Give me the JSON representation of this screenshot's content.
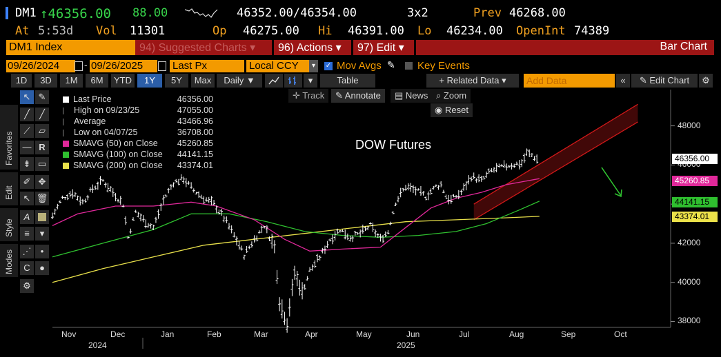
{
  "header": {
    "ticker": "DM1",
    "last": "↑46356.00",
    "change": "88.00",
    "bid_ask": "46352.00/46354.00",
    "size": "3x2",
    "prev_label": "Prev",
    "prev": "46268.00",
    "at_label": "At",
    "at": "5:53d",
    "vol_label": "Vol",
    "vol": "11301",
    "op_label": "Op",
    "op": "46275.00",
    "hi_label": "Hi",
    "hi": "46391.00",
    "lo_label": "Lo",
    "lo": "46234.00",
    "oi_label": "OpenInt",
    "oi": "74389"
  },
  "command_bar": {
    "security": "DM1 Index",
    "suggested": "94) Suggested Charts ▾",
    "actions": "96) Actions ▾",
    "edit": "97) Edit ▾",
    "chart_type": "Bar Chart"
  },
  "settings_bar": {
    "start_date": "09/26/2024",
    "end_date": "09/26/2025",
    "field": "Last Px",
    "currency": "Local CCY",
    "mov_avgs": "Mov Avgs",
    "key_events": "Key Events"
  },
  "toolbar": {
    "periods": [
      "1D",
      "3D",
      "1M",
      "6M",
      "YTD",
      "1Y",
      "5Y",
      "Max"
    ],
    "selected_period": "1Y",
    "frequency": "Daily ▼",
    "table": "Table",
    "related": "+ Related Data ▾",
    "add_data_placeholder": "Add Data",
    "edit_chart": "Edit Chart"
  },
  "chart_tools": {
    "track": "Track",
    "annotate": "Annotate",
    "news": "News",
    "zoom": "Zoom",
    "reset": "Reset"
  },
  "side_tabs": [
    "Favorites",
    "Edit",
    "Style",
    "Modes"
  ],
  "legend": [
    {
      "label": "Last Price",
      "value": "46356.00",
      "color": "#ffffff"
    },
    {
      "label": "High on 09/23/25",
      "value": "47055.00",
      "color": "#aaaaaa"
    },
    {
      "label": "Average",
      "value": "43466.96",
      "color": "#aaaaaa"
    },
    {
      "label": "Low on 04/07/25",
      "value": "36708.00",
      "color": "#aaaaaa"
    },
    {
      "label": "SMAVG (50)  on Close",
      "value": "45260.85",
      "color": "#e0289a"
    },
    {
      "label": "SMAVG (100)  on Close",
      "value": "44141.15",
      "color": "#2fbf2f"
    },
    {
      "label": "SMAVG (200)  on Close",
      "value": "43374.01",
      "color": "#e8e04a"
    }
  ],
  "annotation": "DOW Futures",
  "colors": {
    "sma50": "#e0289a",
    "sma100": "#2fbf2f",
    "sma200": "#e8e04a",
    "channel": "#d01818",
    "arrow": "#2fbf2f",
    "accent_orange": "#f39a00",
    "bar_red": "#9c1515"
  },
  "chart_data": {
    "type": "bar",
    "ylim": [
      37700,
      49500
    ],
    "yticks": [
      "48000",
      "46000",
      "44000",
      "42000",
      "40000",
      "38000"
    ],
    "xticks": [
      "Nov",
      "Dec",
      "Jan",
      "Feb",
      "Mar",
      "Apr",
      "May",
      "Jun",
      "Jul",
      "Aug",
      "Sep",
      "Oct"
    ],
    "years": [
      "2024",
      "2025"
    ],
    "last_badge": "46356.00",
    "sma_badges": [
      "45260.85",
      "44141.15",
      "43374.01"
    ],
    "price_path": [
      [
        0,
        43400
      ],
      [
        4,
        44300
      ],
      [
        8,
        44600
      ],
      [
        12,
        44100
      ],
      [
        16,
        44800
      ],
      [
        20,
        45200
      ],
      [
        24,
        44600
      ],
      [
        28,
        44000
      ],
      [
        30,
        42300
      ],
      [
        33,
        43600
      ],
      [
        36,
        43200
      ],
      [
        40,
        42800
      ],
      [
        44,
        44200
      ],
      [
        48,
        45100
      ],
      [
        52,
        45300
      ],
      [
        56,
        44700
      ],
      [
        60,
        44300
      ],
      [
        64,
        44000
      ],
      [
        68,
        43300
      ],
      [
        72,
        42400
      ],
      [
        76,
        41400
      ],
      [
        80,
        42200
      ],
      [
        84,
        42900
      ],
      [
        88,
        41800
      ],
      [
        90,
        39000
      ],
      [
        93,
        37900
      ],
      [
        96,
        40500
      ],
      [
        99,
        39500
      ],
      [
        102,
        40600
      ],
      [
        106,
        41300
      ],
      [
        110,
        42200
      ],
      [
        114,
        42700
      ],
      [
        118,
        42300
      ],
      [
        122,
        42500
      ],
      [
        126,
        42900
      ],
      [
        130,
        42200
      ],
      [
        133,
        42600
      ],
      [
        136,
        44100
      ],
      [
        140,
        44900
      ],
      [
        144,
        44700
      ],
      [
        148,
        44400
      ],
      [
        152,
        44900
      ],
      [
        154,
        45000
      ],
      [
        156,
        44400
      ],
      [
        158,
        44200
      ],
      [
        162,
        44600
      ],
      [
        166,
        45400
      ],
      [
        170,
        45200
      ],
      [
        174,
        45700
      ],
      [
        178,
        45900
      ],
      [
        182,
        46000
      ],
      [
        186,
        46100
      ],
      [
        188,
        46600
      ],
      [
        190,
        46500
      ],
      [
        192,
        46300
      ]
    ],
    "sma50_path": [
      [
        0,
        42900
      ],
      [
        10,
        43500
      ],
      [
        25,
        43900
      ],
      [
        40,
        43900
      ],
      [
        55,
        44100
      ],
      [
        65,
        43900
      ],
      [
        80,
        43200
      ],
      [
        92,
        42200
      ],
      [
        102,
        41600
      ],
      [
        115,
        41700
      ],
      [
        130,
        41800
      ],
      [
        140,
        42800
      ],
      [
        150,
        43800
      ],
      [
        160,
        44300
      ],
      [
        170,
        44600
      ],
      [
        180,
        45000
      ],
      [
        193,
        45300
      ]
    ],
    "sma100_path": [
      [
        0,
        41300
      ],
      [
        20,
        42000
      ],
      [
        40,
        42700
      ],
      [
        55,
        43500
      ],
      [
        70,
        43500
      ],
      [
        85,
        43100
      ],
      [
        100,
        42600
      ],
      [
        115,
        42400
      ],
      [
        130,
        42300
      ],
      [
        145,
        42400
      ],
      [
        160,
        42600
      ],
      [
        172,
        43000
      ],
      [
        185,
        43700
      ],
      [
        193,
        44150
      ]
    ],
    "sma200_path": [
      [
        0,
        40000
      ],
      [
        20,
        40700
      ],
      [
        40,
        41300
      ],
      [
        60,
        41900
      ],
      [
        80,
        42200
      ],
      [
        100,
        42500
      ],
      [
        120,
        42800
      ],
      [
        140,
        43100
      ],
      [
        160,
        43200
      ],
      [
        180,
        43300
      ],
      [
        193,
        43374
      ]
    ],
    "channel": {
      "lower": [
        [
          167,
          43200
        ],
        [
          232,
          48200
        ]
      ],
      "upper": [
        [
          167,
          44000
        ],
        [
          232,
          49100
        ]
      ]
    }
  }
}
